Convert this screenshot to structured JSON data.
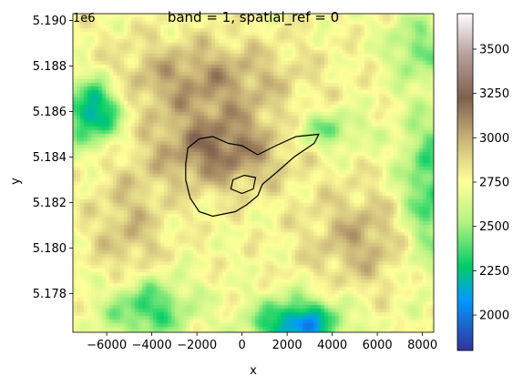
{
  "chart_data": {
    "type": "heatmap",
    "title": "band = 1, spatial_ref = 0",
    "xlabel": "x",
    "ylabel": "y",
    "xlim": [
      -7500,
      8500
    ],
    "ylim": [
      5176300,
      5190300
    ],
    "y_offset_text": "1e6",
    "x_ticks": [
      -6000,
      -4000,
      -2000,
      0,
      2000,
      4000,
      6000,
      8000
    ],
    "x_tick_labels": [
      "−6000",
      "−4000",
      "−2000",
      "0",
      "2000",
      "4000",
      "6000",
      "8000"
    ],
    "y_ticks": [
      5178000,
      5180000,
      5182000,
      5184000,
      5186000,
      5188000,
      5190000
    ],
    "y_tick_labels": [
      "5.178",
      "5.180",
      "5.182",
      "5.184",
      "5.186",
      "5.188",
      "5.190"
    ],
    "colorbar": {
      "colormap": "terrain",
      "range": [
        1800,
        3700
      ],
      "ticks": [
        2000,
        2250,
        2500,
        2750,
        3000,
        3250,
        3500
      ],
      "tick_labels": [
        "2000",
        "2250",
        "2500",
        "2750",
        "3000",
        "3250",
        "3500"
      ]
    },
    "outline": {
      "color": "#000000",
      "points": [
        [
          -2400,
          5184400
        ],
        [
          -1900,
          5184800
        ],
        [
          -1300,
          5184900
        ],
        [
          -600,
          5184600
        ],
        [
          0,
          5184500
        ],
        [
          700,
          5184100
        ],
        [
          1500,
          5184500
        ],
        [
          2400,
          5184900
        ],
        [
          3400,
          5185000
        ],
        [
          3200,
          5184600
        ],
        [
          2300,
          5184000
        ],
        [
          1500,
          5183300
        ],
        [
          900,
          5182800
        ],
        [
          700,
          5182300
        ],
        [
          200,
          5181900
        ],
        [
          -300,
          5181600
        ],
        [
          -800,
          5181500
        ],
        [
          -1300,
          5181400
        ],
        [
          -1900,
          5181600
        ],
        [
          -2300,
          5182200
        ],
        [
          -2500,
          5183000
        ],
        [
          -2500,
          5183700
        ]
      ]
    },
    "outline_inner": {
      "color": "#000000",
      "points": [
        [
          -400,
          5183000
        ],
        [
          100,
          5183200
        ],
        [
          600,
          5183100
        ],
        [
          500,
          5182600
        ],
        [
          0,
          5182400
        ],
        [
          -500,
          5182600
        ]
      ]
    }
  }
}
